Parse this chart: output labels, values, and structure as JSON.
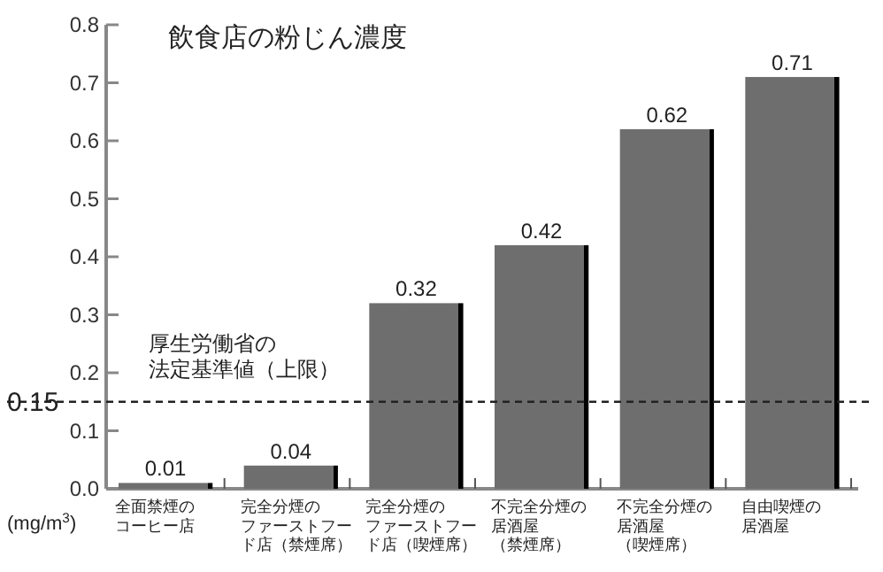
{
  "chart_data": {
    "type": "bar",
    "title": "飲食店の粉じん濃度",
    "ylabel": "(mg/m$^{3}$)",
    "categories": [
      "全面禁煙のコーヒー店",
      "完全分煙のファーストフード店（禁煙席）",
      "完全分煙のファーストフード店（喫煙席）",
      "不完全分煙の居酒屋（禁煙席）",
      "不完全分煙の居酒屋（喫煙席）",
      "自由喫煙の居酒屋"
    ],
    "values": [
      0.01,
      0.04,
      0.32,
      0.42,
      0.62,
      0.71
    ],
    "color": "#6e6e6e",
    "data_labels": true,
    "ylim": [
      0,
      0.8
    ],
    "yticks": [
      {
        "value": 0,
        "label": "0.0"
      },
      0.1,
      0.2,
      0.3,
      0.4,
      0.5,
      0.6,
      0.7,
      0.8
    ],
    "ref_lines": [
      {
        "axis": "y",
        "value": 0.15,
        "label": "0.15",
        "line_style": "dashed"
      }
    ],
    "annotations": [
      "厚生労働省の法定基準値（上限）"
    ],
    "grid": false
  }
}
